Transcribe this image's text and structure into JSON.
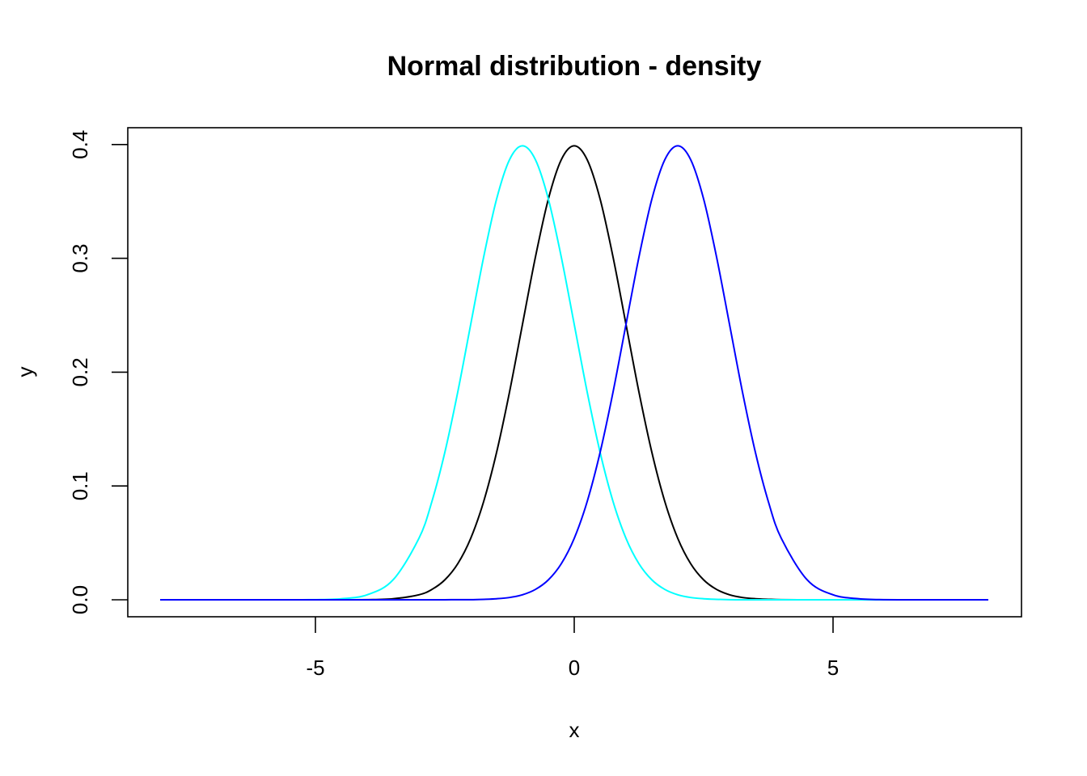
{
  "chart_data": {
    "type": "line",
    "title": "Normal distribution - density",
    "xlabel": "x",
    "ylabel": "y",
    "xlim": [
      -8,
      8
    ],
    "ylim": [
      0,
      0.4
    ],
    "x_ticks": [
      -5,
      0,
      5
    ],
    "x_tick_labels": [
      "-5",
      "0",
      "5"
    ],
    "y_ticks": [
      0.0,
      0.1,
      0.2,
      0.3,
      0.4
    ],
    "y_tick_labels": [
      "0.0",
      "0.1",
      "0.2",
      "0.3",
      "0.4"
    ],
    "grid": false,
    "legend": "none",
    "x": [
      -8,
      -7.5,
      -7,
      -6.5,
      -6,
      -5.5,
      -5,
      -4.5,
      -4,
      -3.5,
      -3,
      -2.75,
      -2.5,
      -2.25,
      -2,
      -1.75,
      -1.5,
      -1.25,
      -1,
      -0.75,
      -0.5,
      -0.25,
      0,
      0.25,
      0.5,
      0.75,
      1,
      1.25,
      1.5,
      1.75,
      2,
      2.25,
      2.5,
      2.75,
      3,
      3.25,
      3.5,
      3.75,
      4,
      4.5,
      5,
      5.5,
      6,
      6.5,
      7,
      7.5,
      8
    ],
    "series": [
      {
        "color": "#000000",
        "values": [
          0,
          0,
          0,
          0,
          0,
          0,
          0,
          0.0,
          0.0001,
          0.0009,
          0.0044,
          0.0091,
          0.0175,
          0.0317,
          0.054,
          0.0863,
          0.1295,
          0.1826,
          0.242,
          0.3011,
          0.3521,
          0.3867,
          0.3989,
          0.3867,
          0.3521,
          0.3011,
          0.242,
          0.1826,
          0.1295,
          0.0863,
          0.054,
          0.0317,
          0.0175,
          0.0091,
          0.0044,
          0.002,
          0.0009,
          0.0004,
          0.0001,
          0.0,
          0,
          0,
          0,
          0,
          0,
          0,
          0
        ]
      },
      {
        "color": "#00ffff",
        "values": [
          0,
          0,
          0,
          0,
          0,
          0,
          0.0001,
          0.0009,
          0.0044,
          0.0175,
          0.054,
          0.0863,
          0.1295,
          0.1826,
          0.242,
          0.3011,
          0.3521,
          0.3867,
          0.3989,
          0.3867,
          0.3521,
          0.3011,
          0.242,
          0.1826,
          0.1295,
          0.0863,
          0.054,
          0.0317,
          0.0175,
          0.0091,
          0.0044,
          0.002,
          0.0009,
          0.0004,
          0.0001,
          0.0,
          0,
          0,
          0,
          0,
          0,
          0,
          0,
          0,
          0,
          0,
          0
        ]
      },
      {
        "color": "#0000ff",
        "values": [
          0,
          0,
          0,
          0,
          0,
          0,
          0,
          0,
          0,
          0,
          0.0,
          0.0,
          0.0,
          0.0001,
          0.0001,
          0.0004,
          0.0009,
          0.002,
          0.0044,
          0.0091,
          0.0175,
          0.0317,
          0.054,
          0.0863,
          0.1295,
          0.1826,
          0.242,
          0.3011,
          0.3521,
          0.3867,
          0.3989,
          0.3867,
          0.3521,
          0.3011,
          0.242,
          0.1826,
          0.1295,
          0.0863,
          0.054,
          0.0175,
          0.0044,
          0.0009,
          0.0001,
          0.0,
          0,
          0,
          0
        ]
      }
    ]
  }
}
